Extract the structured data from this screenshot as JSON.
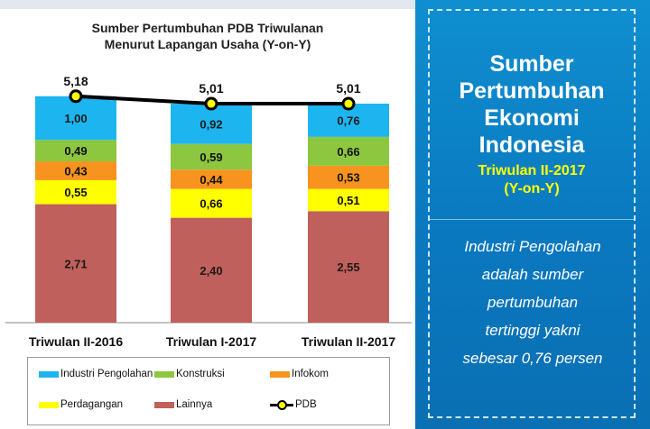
{
  "chart_data": {
    "type": "bar",
    "stacked": true,
    "title": "Sumber Pertumbuhan PDB Triwulanan Menurut Lapangan Usaha (Y-on-Y)",
    "title_lines": [
      "Sumber Pertumbuhan PDB Triwulanan",
      "Menurut Lapangan Usaha (Y-on-Y)"
    ],
    "categories": [
      "Triwulan II-2016",
      "Triwulan I-2017",
      "Triwulan II-2017"
    ],
    "series": [
      {
        "name": "Lainnya",
        "color": "#c0605c",
        "values": [
          2.71,
          2.4,
          2.55
        ],
        "labels": [
          "2,71",
          "2,40",
          "2,55"
        ]
      },
      {
        "name": "Perdagangan",
        "color": "#ffff00",
        "values": [
          0.55,
          0.66,
          0.51
        ],
        "labels": [
          "0,55",
          "0,66",
          "0,51"
        ]
      },
      {
        "name": "Infokom",
        "color": "#f7931e",
        "values": [
          0.43,
          0.44,
          0.53
        ],
        "labels": [
          "0,43",
          "0,44",
          "0,53"
        ]
      },
      {
        "name": "Konstruksi",
        "color": "#8dc63f",
        "values": [
          0.49,
          0.59,
          0.66
        ],
        "labels": [
          "0,49",
          "0,59",
          "0,66"
        ]
      },
      {
        "name": "Industri Pengolahan",
        "color": "#1cb5f0",
        "values": [
          1.0,
          0.92,
          0.76
        ],
        "labels": [
          "1,00",
          "0,92",
          "0,76"
        ]
      }
    ],
    "line_series": {
      "name": "PDB",
      "color": "#000000",
      "marker_color": "#ffff00",
      "values": [
        5.18,
        5.01,
        5.01
      ],
      "labels": [
        "5,18",
        "5,01",
        "5,01"
      ]
    },
    "ylim": [
      0,
      5.5
    ],
    "grid": false,
    "legend_position": "bottom",
    "legend": [
      {
        "name": "Industri Pengolahan",
        "kind": "box",
        "color": "#1cb5f0"
      },
      {
        "name": "Konstruksi",
        "kind": "box",
        "color": "#8dc63f"
      },
      {
        "name": "Infokom",
        "kind": "box",
        "color": "#f7931e"
      },
      {
        "name": "Perdagangan",
        "kind": "box",
        "color": "#ffff00"
      },
      {
        "name": "Lainnya",
        "kind": "box",
        "color": "#c0605c"
      },
      {
        "name": "PDB",
        "kind": "line",
        "color": "#000000"
      }
    ]
  },
  "side_panel": {
    "title_lines": [
      "Sumber",
      "Pertumbuhan",
      "Ekonomi",
      "Indonesia"
    ],
    "subtitle_lines": [
      "Triwulan II-2017",
      "(Y-on-Y)"
    ],
    "description_lines": [
      "Industri Pengolahan",
      "adalah sumber",
      "pertumbuhan",
      "tertinggi yakni",
      "sebesar 0,76 persen"
    ],
    "colors": {
      "background": "#0a78bf",
      "title": "#ffffff",
      "subtitle": "#ffff00",
      "description": "#ffffff"
    }
  }
}
